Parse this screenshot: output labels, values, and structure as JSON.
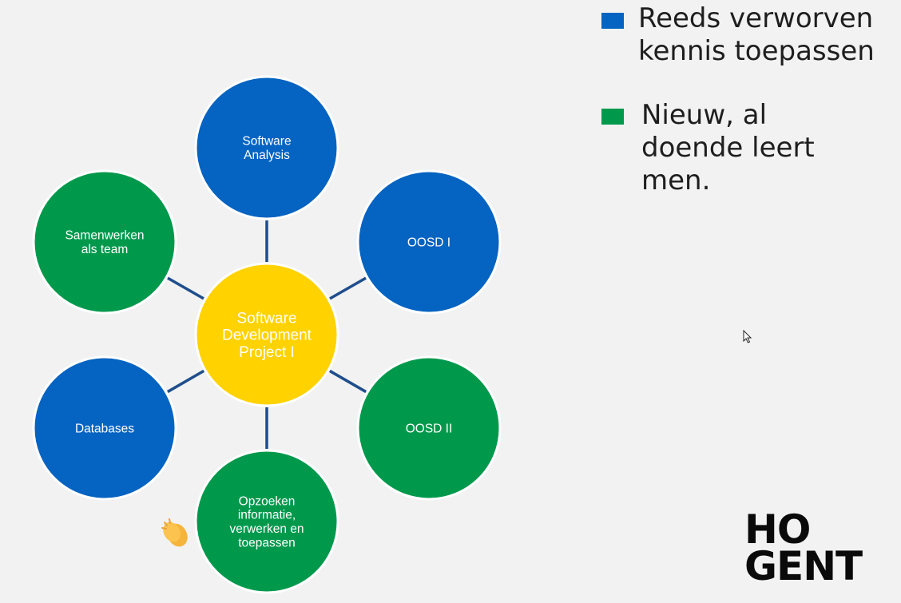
{
  "colors": {
    "known": "#0563c1",
    "new": "#00994c",
    "center": "#ffd200",
    "connector": "#1f4e8c",
    "outline": "#ffffff"
  },
  "diagram": {
    "center": {
      "label": "Software\nDevelopment\nProject I",
      "color": "center"
    },
    "nodes": [
      {
        "id": "software-analysis",
        "label": "Software\nAnalysis",
        "category": "known"
      },
      {
        "id": "oosd-i",
        "label": "OOSD I",
        "category": "known"
      },
      {
        "id": "oosd-ii",
        "label": "OOSD II",
        "category": "new"
      },
      {
        "id": "opzoeken",
        "label": "Opzoeken\ninformatie,\nverwerken en\ntoepassen",
        "category": "new"
      },
      {
        "id": "databases",
        "label": "Databases",
        "category": "known"
      },
      {
        "id": "samenwerken",
        "label": "Samenwerken\nals team",
        "category": "new"
      }
    ]
  },
  "legend": {
    "known": "Reeds verworven\nkennis toepassen",
    "new": "Nieuw, al\ndoende leert\nmen."
  },
  "logo": {
    "line1": "HO",
    "line2": "GENT"
  },
  "icons": {
    "cursor": "mouse-cursor-icon",
    "reaction": "clapping-hands-icon"
  }
}
